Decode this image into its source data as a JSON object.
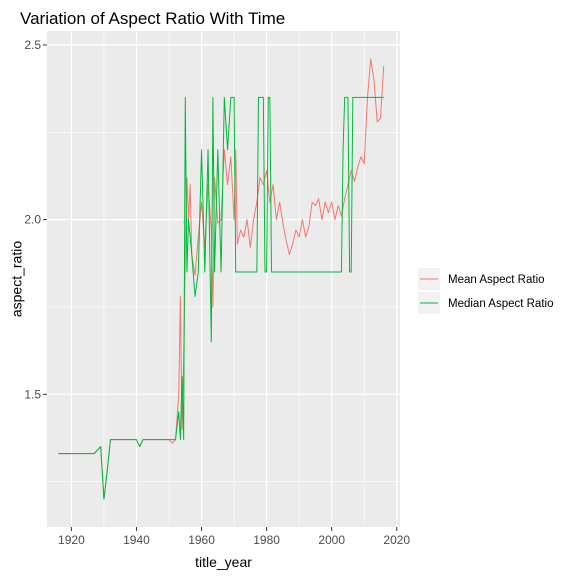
{
  "chart_data": {
    "type": "line",
    "title": "Variation of Aspect Ratio With Time",
    "xlabel": "title_year",
    "ylabel": "aspect_ratio",
    "xlim": [
      1912.5,
      2021
    ],
    "ylim": [
      1.12,
      2.54
    ],
    "x_ticks": [
      1920,
      1940,
      1960,
      1980,
      2000,
      2020
    ],
    "x_tick_labels": [
      "1920",
      "1940",
      "1960",
      "1980",
      "2000",
      "2020"
    ],
    "y_ticks": [
      1.5,
      2.0,
      2.5
    ],
    "y_tick_labels": [
      "1.5",
      "2.0",
      "2.5"
    ],
    "grid": true,
    "legend_position": "right",
    "series": [
      {
        "name": "Mean Aspect Ratio",
        "color": "#F8766D",
        "points": [
          [
            1916,
            1.33
          ],
          [
            1920,
            1.33
          ],
          [
            1925,
            1.33
          ],
          [
            1927,
            1.33
          ],
          [
            1929,
            1.35
          ],
          [
            1930,
            1.2
          ],
          [
            1931,
            1.28
          ],
          [
            1932,
            1.37
          ],
          [
            1934,
            1.37
          ],
          [
            1936,
            1.37
          ],
          [
            1938,
            1.37
          ],
          [
            1940,
            1.37
          ],
          [
            1941,
            1.35
          ],
          [
            1942,
            1.37
          ],
          [
            1944,
            1.37
          ],
          [
            1946,
            1.37
          ],
          [
            1948,
            1.37
          ],
          [
            1950,
            1.37
          ],
          [
            1951,
            1.36
          ],
          [
            1952,
            1.37
          ],
          [
            1953,
            1.5
          ],
          [
            1953.5,
            1.78
          ],
          [
            1954,
            1.4
          ],
          [
            1954.5,
            1.6
          ],
          [
            1955,
            1.89
          ],
          [
            1955.5,
            2.12
          ],
          [
            1956,
            2.0
          ],
          [
            1956.5,
            2.1
          ],
          [
            1957,
            1.9
          ],
          [
            1958,
            1.84
          ],
          [
            1959,
            1.95
          ],
          [
            1960,
            2.05
          ],
          [
            1961,
            1.92
          ],
          [
            1962,
            2.1
          ],
          [
            1963,
            1.97
          ],
          [
            1963.5,
            1.75
          ],
          [
            1964,
            2.12
          ],
          [
            1965,
            1.99
          ],
          [
            1966,
            2.0
          ],
          [
            1967,
            2.2
          ],
          [
            1968,
            2.1
          ],
          [
            1969,
            2.18
          ],
          [
            1970,
            2.0
          ],
          [
            1970.5,
            2.2
          ],
          [
            1971,
            1.93
          ],
          [
            1972,
            1.97
          ],
          [
            1973,
            1.95
          ],
          [
            1974,
            2.0
          ],
          [
            1975,
            1.92
          ],
          [
            1976,
            2.0
          ],
          [
            1977,
            2.05
          ],
          [
            1978,
            2.12
          ],
          [
            1979,
            2.1
          ],
          [
            1980,
            2.14
          ],
          [
            1981,
            2.05
          ],
          [
            1982,
            2.1
          ],
          [
            1983,
            2.0
          ],
          [
            1984,
            2.05
          ],
          [
            1985,
            1.99
          ],
          [
            1986,
            1.94
          ],
          [
            1987,
            1.9
          ],
          [
            1988,
            1.93
          ],
          [
            1989,
            1.97
          ],
          [
            1990,
            1.95
          ],
          [
            1991,
            2.0
          ],
          [
            1992,
            1.95
          ],
          [
            1993,
            1.98
          ],
          [
            1994,
            2.05
          ],
          [
            1995,
            2.04
          ],
          [
            1996,
            2.06
          ],
          [
            1997,
            2.0
          ],
          [
            1998,
            2.05
          ],
          [
            1999,
            2.02
          ],
          [
            2000,
            2.05
          ],
          [
            2001,
            2.0
          ],
          [
            2002,
            2.04
          ],
          [
            2003,
            2.01
          ],
          [
            2004,
            2.06
          ],
          [
            2005,
            2.1
          ],
          [
            2006,
            2.14
          ],
          [
            2007,
            2.11
          ],
          [
            2008,
            2.15
          ],
          [
            2009,
            2.18
          ],
          [
            2010,
            2.16
          ],
          [
            2011,
            2.35
          ],
          [
            2012,
            2.46
          ],
          [
            2013,
            2.4
          ],
          [
            2014,
            2.28
          ],
          [
            2015,
            2.29
          ],
          [
            2016,
            2.44
          ]
        ]
      },
      {
        "name": "Median Aspect Ratio",
        "color": "#00BA38",
        "points": [
          [
            1916,
            1.33
          ],
          [
            1920,
            1.33
          ],
          [
            1925,
            1.33
          ],
          [
            1927,
            1.33
          ],
          [
            1929,
            1.35
          ],
          [
            1930,
            1.2
          ],
          [
            1931,
            1.28
          ],
          [
            1932,
            1.37
          ],
          [
            1940,
            1.37
          ],
          [
            1941,
            1.35
          ],
          [
            1942,
            1.37
          ],
          [
            1951,
            1.37
          ],
          [
            1952,
            1.37
          ],
          [
            1953,
            1.45
          ],
          [
            1953.5,
            1.37
          ],
          [
            1954,
            1.55
          ],
          [
            1954.5,
            1.37
          ],
          [
            1955,
            2.35
          ],
          [
            1955.5,
            1.85
          ],
          [
            1956,
            2.0
          ],
          [
            1957,
            1.9
          ],
          [
            1958,
            1.78
          ],
          [
            1959,
            1.85
          ],
          [
            1960,
            2.2
          ],
          [
            1961,
            1.85
          ],
          [
            1962,
            2.2
          ],
          [
            1963,
            1.65
          ],
          [
            1963.5,
            2.35
          ],
          [
            1964,
            1.85
          ],
          [
            1965,
            2.2
          ],
          [
            1966,
            1.85
          ],
          [
            1967,
            2.35
          ],
          [
            1968,
            2.2
          ],
          [
            1969,
            2.35
          ],
          [
            1970,
            2.35
          ],
          [
            1970.5,
            1.85
          ],
          [
            1971,
            1.85
          ],
          [
            1977,
            1.85
          ],
          [
            1977.5,
            2.35
          ],
          [
            1979,
            2.35
          ],
          [
            1979.5,
            1.85
          ],
          [
            1980,
            1.85
          ],
          [
            1980.5,
            2.35
          ],
          [
            1981,
            2.35
          ],
          [
            1981.5,
            1.85
          ],
          [
            1982,
            1.85
          ],
          [
            2003,
            1.85
          ],
          [
            2003.5,
            2.2
          ],
          [
            2004,
            2.35
          ],
          [
            2005,
            2.35
          ],
          [
            2005.5,
            1.85
          ],
          [
            2006,
            1.85
          ],
          [
            2006.5,
            2.35
          ],
          [
            2016,
            2.35
          ]
        ]
      }
    ]
  }
}
